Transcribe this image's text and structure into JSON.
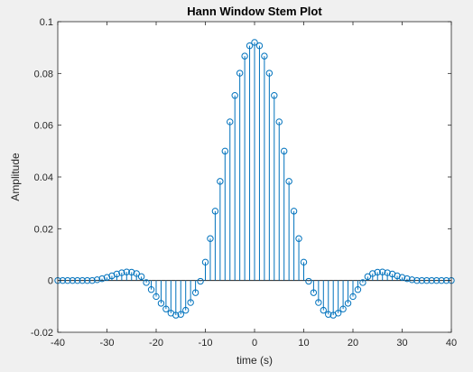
{
  "chart_data": {
    "type": "stem",
    "title": "Hann Window Stem Plot",
    "xlabel": "time (s)",
    "ylabel": "Amplitude",
    "xlim": [
      -40,
      40
    ],
    "ylim": [
      -0.02,
      0.1
    ],
    "xticks": [
      -40,
      -30,
      -20,
      -10,
      0,
      10,
      20,
      30,
      40
    ],
    "yticks": [
      -0.02,
      0,
      0.02,
      0.04,
      0.06,
      0.08,
      0.1
    ],
    "xtick_labels": [
      "-40",
      "-30",
      "-20",
      "-10",
      "0",
      "10",
      "20",
      "30",
      "40"
    ],
    "ytick_labels": [
      "-0.02",
      "0",
      "0.02",
      "0.04",
      "0.06",
      "0.08",
      "0.1"
    ],
    "grid": false,
    "series": [
      {
        "color": "#0072bd",
        "marker": "open-circle",
        "x": [
          -40,
          -39,
          -38,
          -37,
          -36,
          -35,
          -34,
          -33,
          -32,
          -31,
          -30,
          -29,
          -28,
          -27,
          -26,
          -25,
          -24,
          -23,
          -22,
          -21,
          -20,
          -19,
          -18,
          -17,
          -16,
          -15,
          -14,
          -13,
          -12,
          -11,
          -10,
          -9,
          -8,
          -7,
          -6,
          -5,
          -4,
          -3,
          -2,
          -1,
          0,
          1,
          2,
          3,
          4,
          5,
          6,
          7,
          8,
          9,
          10,
          11,
          12,
          13,
          14,
          15,
          16,
          17,
          18,
          19,
          20,
          21,
          22,
          23,
          24,
          25,
          26,
          27,
          28,
          29,
          30,
          31,
          32,
          33,
          34,
          35,
          36,
          37,
          38,
          39,
          40
        ],
        "y": [
          0.0,
          0.0,
          0.0,
          0.0,
          0.0,
          0.0,
          0.0,
          0.0,
          0.0003,
          0.0007,
          0.0012,
          0.0018,
          0.0025,
          0.003,
          0.0033,
          0.0032,
          0.0027,
          0.0015,
          -0.0008,
          -0.0035,
          -0.0062,
          -0.0088,
          -0.011,
          -0.0126,
          -0.0134,
          -0.0131,
          -0.0115,
          -0.0085,
          -0.0047,
          -0.0003,
          0.0071,
          0.0162,
          0.0268,
          0.0383,
          0.05,
          0.0613,
          0.0715,
          0.0801,
          0.0867,
          0.0907,
          0.092,
          0.0907,
          0.0867,
          0.0801,
          0.0715,
          0.0613,
          0.05,
          0.0383,
          0.0268,
          0.0162,
          0.0071,
          -0.0003,
          -0.0047,
          -0.0085,
          -0.0115,
          -0.0131,
          -0.0134,
          -0.0126,
          -0.011,
          -0.0088,
          -0.0062,
          -0.0035,
          -0.0008,
          0.0015,
          0.0027,
          0.0032,
          0.0033,
          0.003,
          0.0025,
          0.0018,
          0.0012,
          0.0007,
          0.0003,
          0.0,
          0.0,
          0.0,
          0.0,
          0.0,
          0.0,
          0.0,
          0.0
        ]
      }
    ]
  }
}
